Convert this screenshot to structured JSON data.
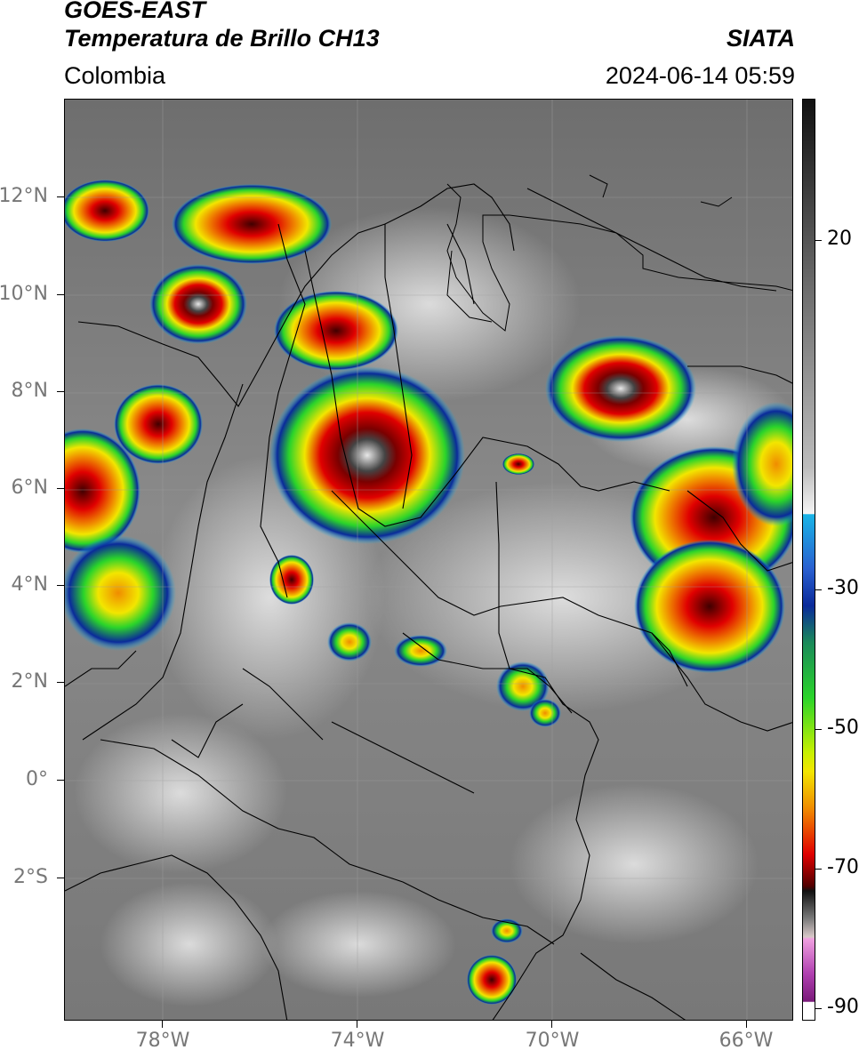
{
  "header": {
    "satellite": "GOES-EAST",
    "product": "Temperatura de Brillo CH13",
    "brand": "SIATA",
    "region": "Colombia",
    "timestamp": "2024-06-14 05:59"
  },
  "axes": {
    "lat_labels": [
      "12°N",
      "10°N",
      "8°N",
      "6°N",
      "4°N",
      "2°N",
      "0°",
      "2°S"
    ],
    "lon_labels": [
      "78°W",
      "74°W",
      "70°W",
      "66°W"
    ]
  },
  "colorbar": {
    "labels": [
      "20",
      "-30",
      "-50",
      "-70",
      "-90"
    ],
    "colors": {
      "gray_top": "#111111",
      "gray_mid": "#9a9a9a",
      "gray_low": "#f0f0f0",
      "cyan": "#19b4e6",
      "blue": "#0a2a9a",
      "green": "#2ad42a",
      "yellow": "#f2e600",
      "orange": "#f08c00",
      "red": "#e00000",
      "darkred": "#400000",
      "pink": "#e060c8",
      "purple": "#7a1a7a"
    }
  }
}
